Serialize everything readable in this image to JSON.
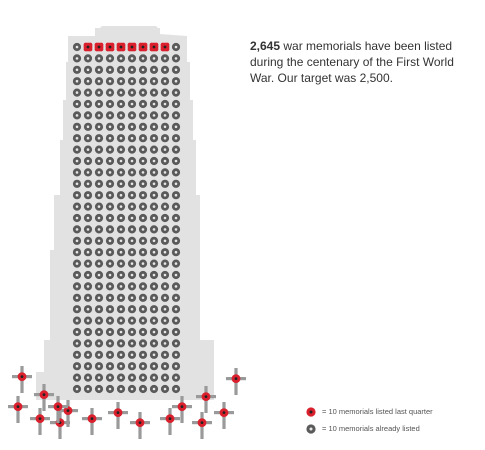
{
  "headline": {
    "count": "2,645",
    "rest": " war memorials have been listed during the centenary of the First World War. Our target was 2,500."
  },
  "icons": {
    "grid_rows": 31,
    "grid_cols": 10,
    "poppy_icons_in_top_row": 8,
    "poppy_crosses": 16,
    "poppy_icon": "poppy-icon",
    "grey_icon": "memorial-icon",
    "cross_icon": "cross-icon"
  },
  "legend": {
    "poppy_label": "= 10 memorials listed last quarter",
    "grey_label": "= 10 memorials already listed"
  },
  "colors": {
    "tower": "#e2e2e2",
    "cross": "#9a9a9a",
    "poppy": "#d9202c",
    "grey_icon": "#5a5a5a",
    "text": "#333333"
  }
}
